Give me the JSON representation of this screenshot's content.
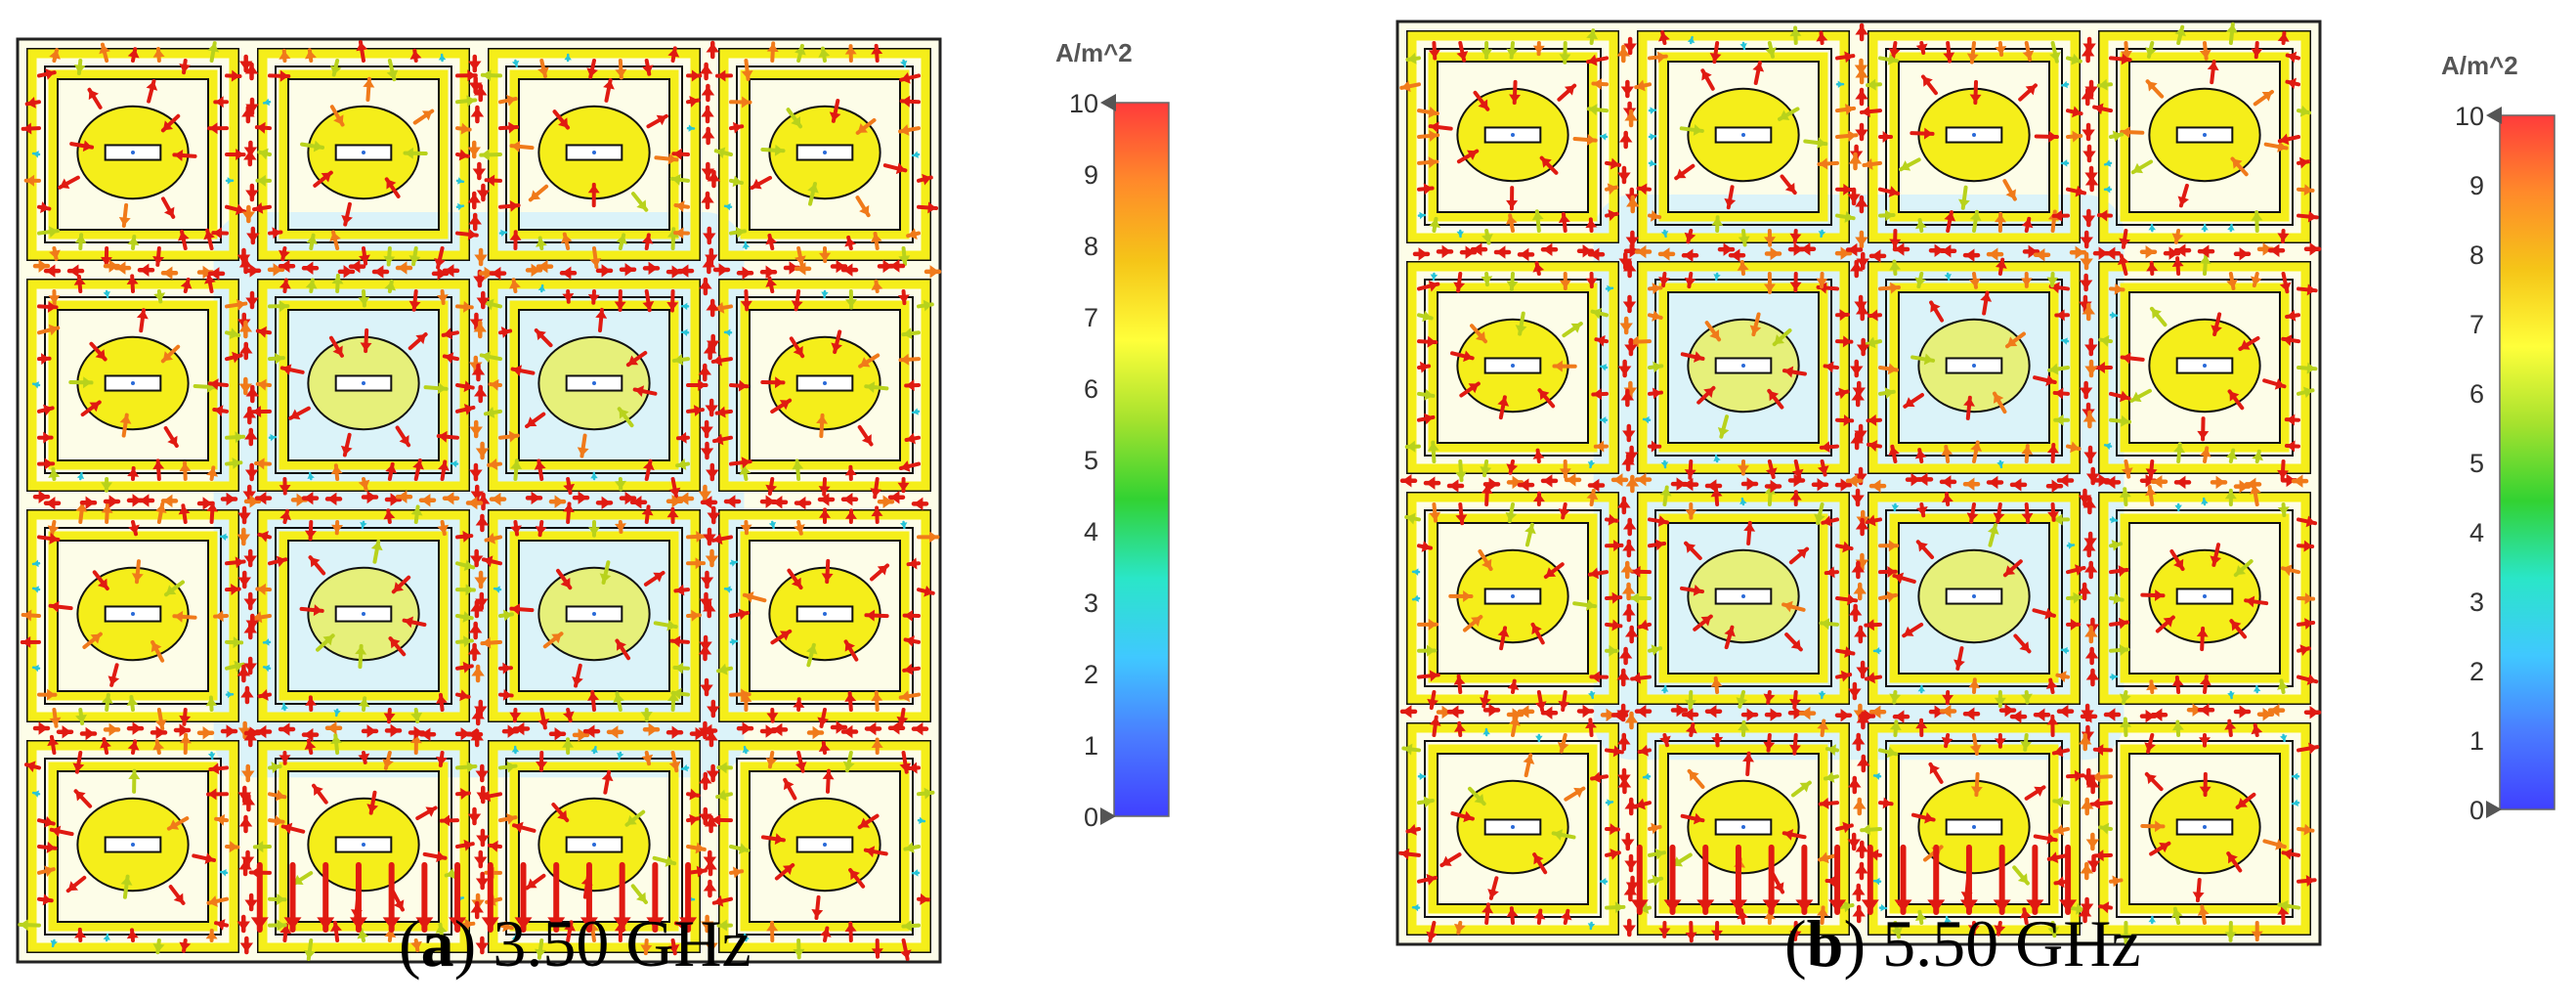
{
  "colorbar": {
    "unit": "A/m^2",
    "ticks": [
      "10",
      "9",
      "8",
      "7",
      "6",
      "5",
      "4",
      "3",
      "2",
      "1",
      "0"
    ],
    "min": 0,
    "max": 10,
    "colors": [
      "#ff3b3b",
      "#ff8a2a",
      "#f5c518",
      "#ffff3a",
      "#a6e22e",
      "#32d232",
      "#2ae6c8",
      "#40c8ff",
      "#4a7cff",
      "#4040ff"
    ]
  },
  "panels": [
    {
      "id": "a",
      "letter": "a",
      "frequency": "3.50 GHz",
      "grid": [
        4,
        4
      ]
    },
    {
      "id": "b",
      "letter": "b",
      "frequency": "5.50 GHz",
      "grid": [
        4,
        4
      ]
    }
  ],
  "palette": {
    "substrate_glow": "#cfefff",
    "metal": "#f5ee1a",
    "arrow_strong": "#e01a12",
    "arrow_mid": "#f07a1a",
    "arrow_weak": "#b8d21c",
    "arrow_low": "#27c4d8"
  }
}
